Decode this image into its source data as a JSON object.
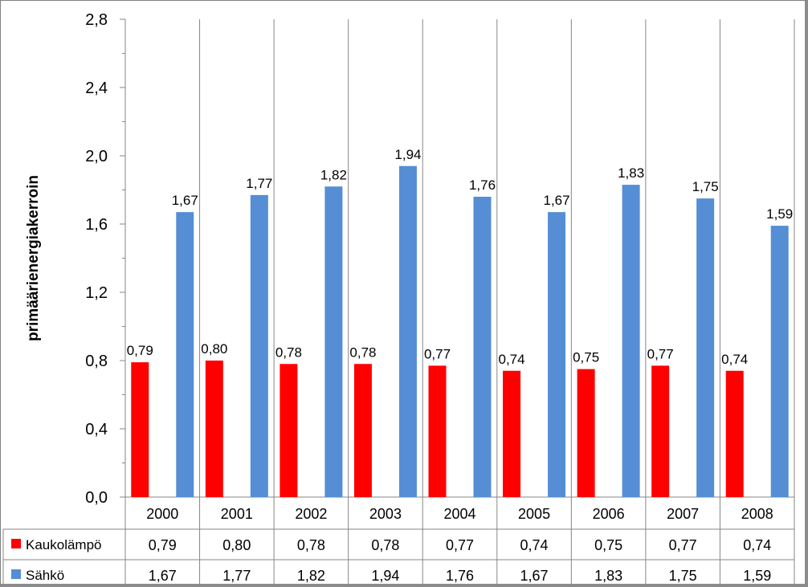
{
  "chart_data": {
    "type": "bar",
    "ylabel": "primäärienergiakerroin",
    "xlabel": "",
    "ylim": [
      0,
      2.8
    ],
    "yticks": [
      "0,0",
      "0,4",
      "0,8",
      "1,2",
      "1,6",
      "2,0",
      "2,4",
      "2,8"
    ],
    "ytick_values": [
      0,
      0.4,
      0.8,
      1.2,
      1.6,
      2.0,
      2.4,
      2.8
    ],
    "grid": "vertical category lines",
    "legend": "data table below chart",
    "categories": [
      "2000",
      "2001",
      "2002",
      "2003",
      "2004",
      "2005",
      "2006",
      "2007",
      "2008"
    ],
    "series": [
      {
        "name": "Kaukolämpö",
        "color": "#ff0000",
        "values": [
          0.79,
          0.8,
          0.78,
          0.78,
          0.77,
          0.74,
          0.75,
          0.77,
          0.74
        ],
        "labels": [
          "0,79",
          "0,80",
          "0,78",
          "0,78",
          "0,77",
          "0,74",
          "0,75",
          "0,77",
          "0,74"
        ]
      },
      {
        "name": "Sähkö",
        "color": "#558ed5",
        "values": [
          1.67,
          1.77,
          1.82,
          1.94,
          1.76,
          1.67,
          1.83,
          1.75,
          1.59
        ],
        "labels": [
          "1,67",
          "1,77",
          "1,82",
          "1,94",
          "1,76",
          "1,67",
          "1,83",
          "1,75",
          "1,59"
        ]
      }
    ]
  }
}
